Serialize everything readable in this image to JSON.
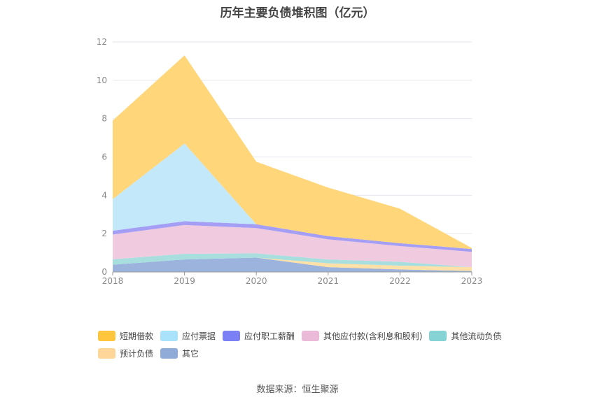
{
  "chart_data": {
    "type": "area",
    "stacked": true,
    "title": "历年主要负债堆积图（亿元）",
    "categories": [
      "2018",
      "2019",
      "2020",
      "2021",
      "2022",
      "2023"
    ],
    "ylim": [
      0,
      12
    ],
    "yticks": [
      0,
      2,
      4,
      6,
      8,
      10,
      12
    ],
    "grid": true,
    "legend_position": "bottom",
    "series": [
      {
        "name": "其它",
        "color": "#9bb3dd",
        "values": [
          0.38,
          0.65,
          0.75,
          0.25,
          0.13,
          0.05
        ]
      },
      {
        "name": "预计负债",
        "color": "#ffe0a6",
        "values": [
          0.0,
          0.0,
          0.0,
          0.2,
          0.2,
          0.2
        ]
      },
      {
        "name": "其他流动负债",
        "color": "#a8dede",
        "values": [
          0.28,
          0.3,
          0.22,
          0.2,
          0.2,
          0.0
        ]
      },
      {
        "name": "其他应付款(含利息和股利)",
        "color": "#f0cbe0",
        "values": [
          1.29,
          1.5,
          1.32,
          1.05,
          0.82,
          0.8
        ]
      },
      {
        "name": "应付职工薪酬",
        "color": "#a59ef5",
        "values": [
          0.2,
          0.2,
          0.2,
          0.17,
          0.15,
          0.15
        ]
      },
      {
        "name": "应付票据",
        "color": "#c2e8fa",
        "values": [
          1.65,
          4.05,
          0.0,
          0.0,
          0.0,
          0.0
        ]
      },
      {
        "name": "短期借款",
        "color": "#ffd67a",
        "values": [
          4.1,
          4.6,
          3.26,
          2.53,
          1.8,
          0.05
        ]
      }
    ]
  },
  "legend": [
    {
      "name": "短期借款",
      "color": "#ffc53d"
    },
    {
      "name": "应付票据",
      "color": "#a9e2fb"
    },
    {
      "name": "应付职工薪酬",
      "color": "#7b80f5"
    },
    {
      "name": "其他应付款(含利息和股利)",
      "color": "#ebbad9"
    },
    {
      "name": "其他流动负债",
      "color": "#85d3d5"
    },
    {
      "name": "预计负债",
      "color": "#ffd699"
    },
    {
      "name": "其它",
      "color": "#91abd9"
    }
  ],
  "source": "数据来源：恒生聚源"
}
